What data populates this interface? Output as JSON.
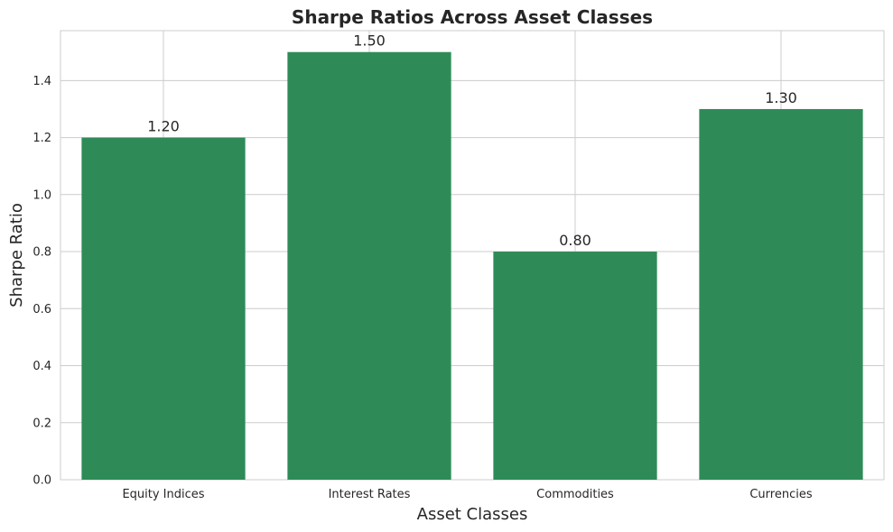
{
  "chart_data": {
    "type": "bar",
    "title": "Sharpe Ratios Across Asset Classes",
    "xlabel": "Asset Classes",
    "ylabel": "Sharpe Ratio",
    "categories": [
      "Equity Indices",
      "Interest Rates",
      "Commodities",
      "Currencies"
    ],
    "values": [
      1.2,
      1.5,
      0.8,
      1.3
    ],
    "data_labels": [
      "1.20",
      "1.50",
      "0.80",
      "1.30"
    ],
    "ylim": [
      0,
      1.575
    ],
    "yticks": [
      0.0,
      0.2,
      0.4,
      0.6,
      0.8,
      1.0,
      1.2,
      1.4
    ],
    "ytick_labels": [
      "0.0",
      "0.2",
      "0.4",
      "0.6",
      "0.8",
      "1.0",
      "1.2",
      "1.4"
    ],
    "grid": true,
    "bar_color": "#2e8b57",
    "grid_color": "#cccccc",
    "text_color": "#262626"
  }
}
